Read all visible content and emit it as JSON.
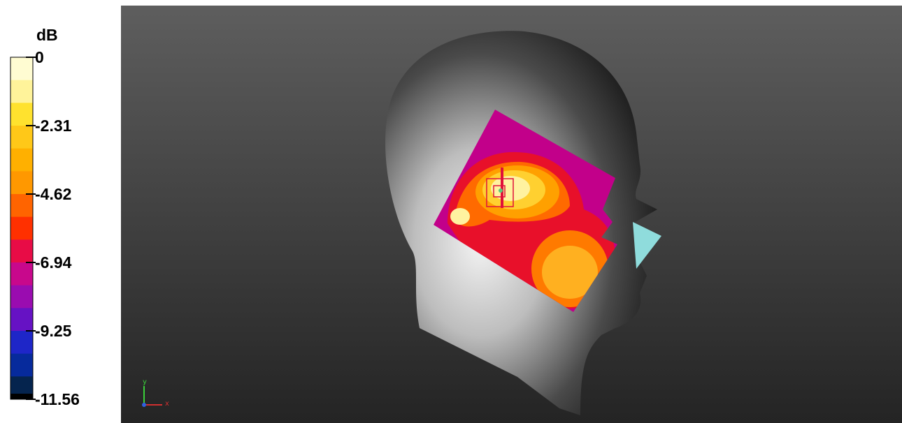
{
  "colorbar": {
    "unit": "dB",
    "ticks": [
      0,
      -2.31,
      -4.62,
      -6.94,
      -9.25,
      -11.56
    ]
  },
  "axes": {
    "y": "y",
    "x": "x"
  }
}
